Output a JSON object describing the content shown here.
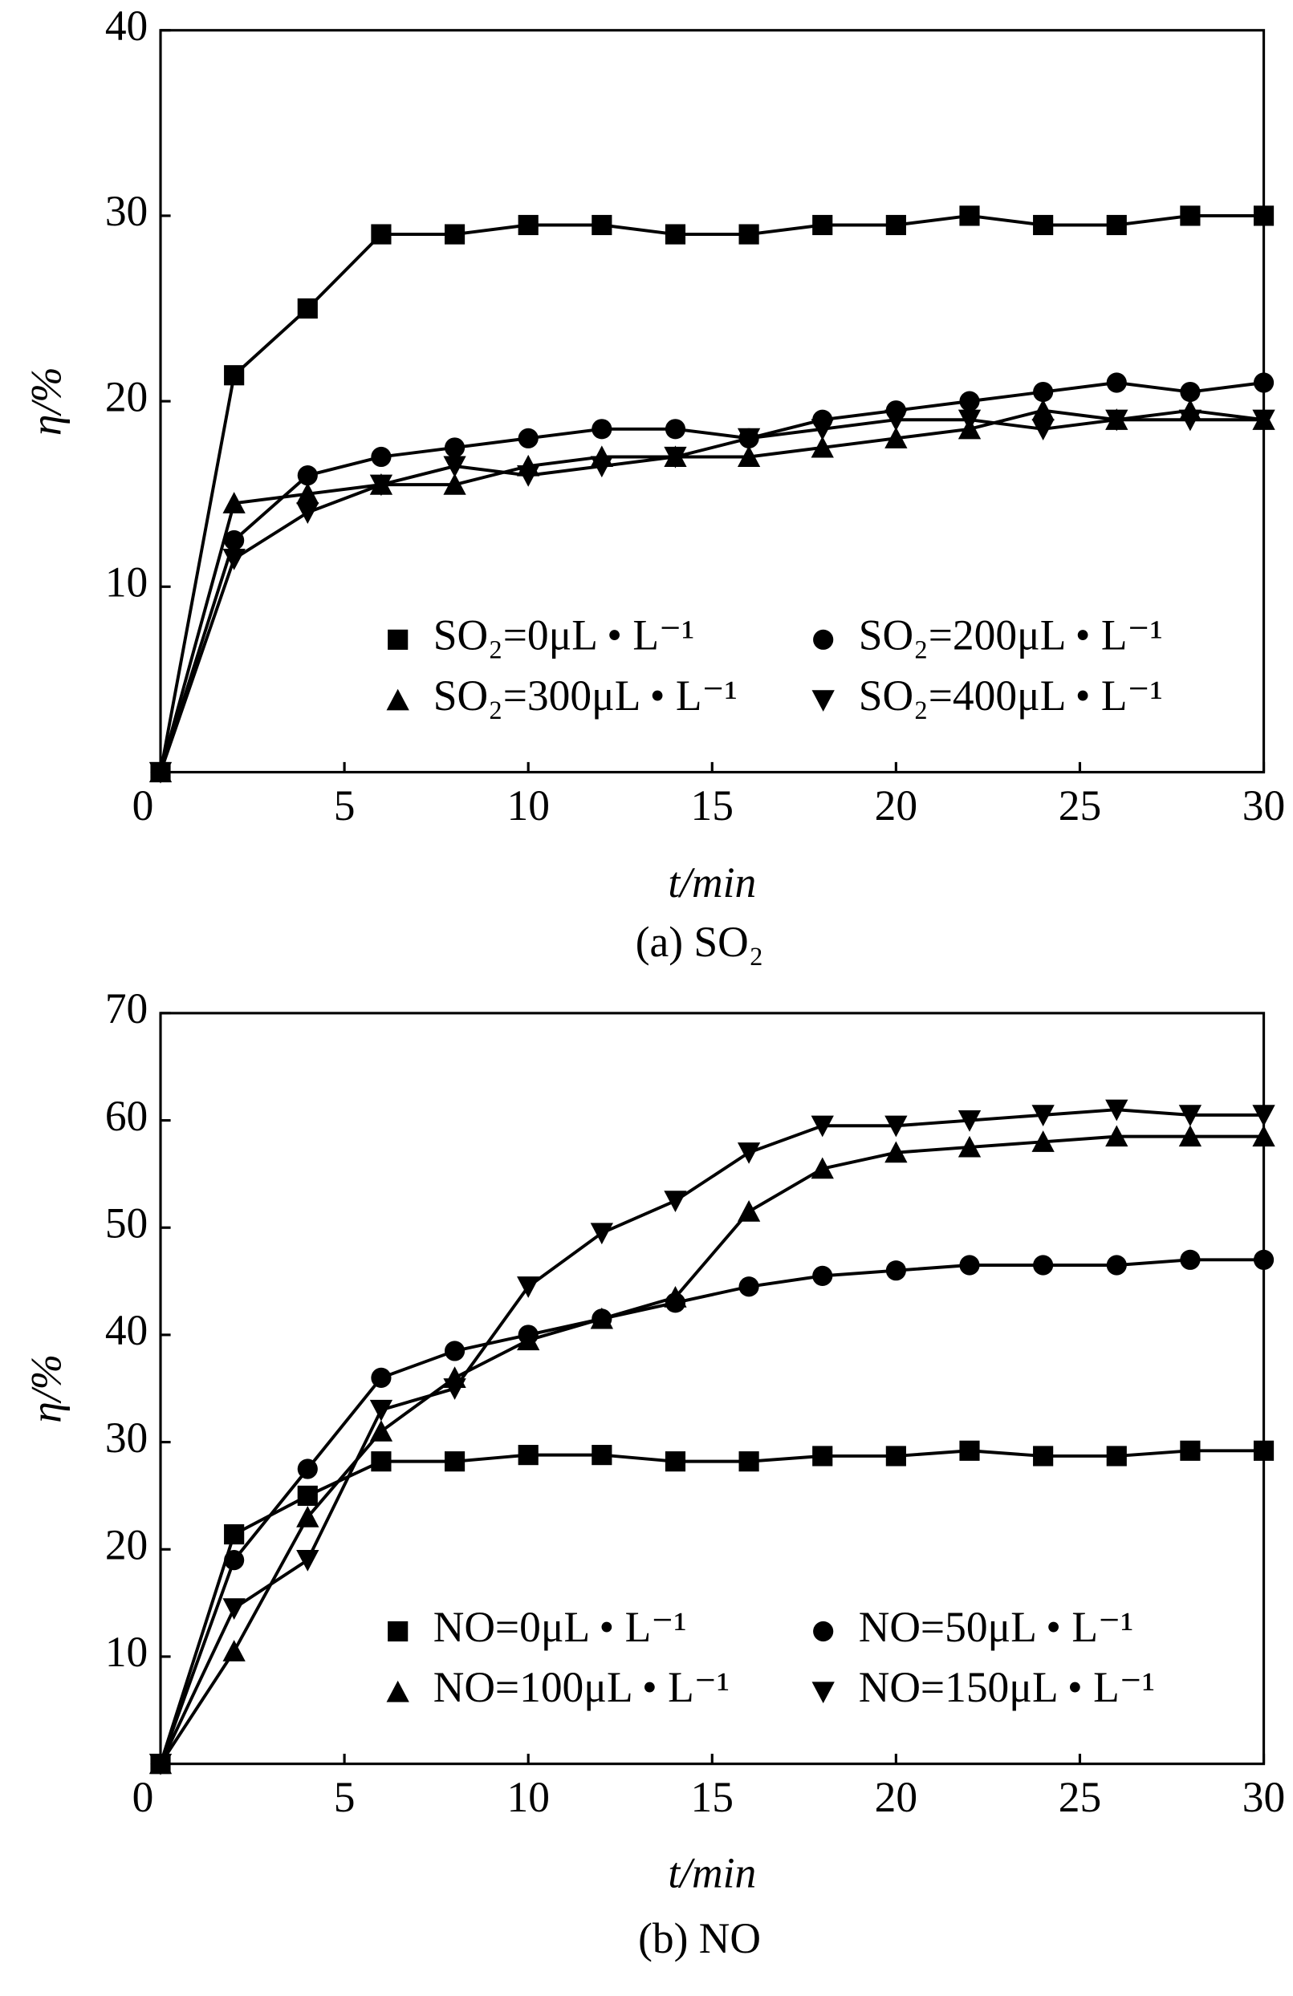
{
  "chart_data": [
    {
      "type": "line",
      "caption": "(a)  SO₂",
      "xlabel": "t/min",
      "ylabel": "η/%",
      "xlim": [
        0,
        30
      ],
      "xticks": [
        0,
        5,
        10,
        15,
        20,
        25,
        30
      ],
      "ylim": [
        0,
        40
      ],
      "yticks": [
        10,
        20,
        30,
        40
      ],
      "legend": "lower right",
      "x": [
        0,
        2,
        4,
        6,
        8,
        10,
        12,
        14,
        16,
        18,
        20,
        22,
        24,
        26,
        28,
        30
      ],
      "series": [
        {
          "name": "SO₂=0μL • L⁻¹",
          "color": "#000000",
          "marker": "square",
          "values": [
            0,
            21.4,
            25,
            29,
            29,
            29.5,
            29.5,
            29,
            29,
            29.5,
            29.5,
            30,
            29.5,
            29.5,
            30,
            30
          ]
        },
        {
          "name": "SO₂=200μL • L⁻¹",
          "color": "#000000",
          "marker": "circle",
          "values": [
            0,
            12.5,
            16,
            17,
            17.5,
            18,
            18.5,
            18.5,
            18,
            19,
            19.5,
            20,
            20.5,
            21,
            20.5,
            21
          ]
        },
        {
          "name": "SO₂=300μL • L⁻¹",
          "color": "#000000",
          "marker": "triangle",
          "values": [
            0,
            14.5,
            15,
            15.5,
            15.5,
            16.5,
            17,
            17,
            17,
            17.5,
            18,
            18.5,
            19.5,
            19,
            19.5,
            19
          ]
        },
        {
          "name": "SO₂=400μL • L⁻¹",
          "color": "#000000",
          "marker": "triangle-down",
          "values": [
            0,
            11.5,
            14,
            15.5,
            16.5,
            16,
            16.5,
            17,
            18,
            18.5,
            19,
            19,
            18.5,
            19,
            19,
            19
          ]
        }
      ]
    },
    {
      "type": "line",
      "caption": "(b) NO",
      "xlabel": "t/min",
      "ylabel": "η/%",
      "xlim": [
        0,
        30
      ],
      "xticks": [
        0,
        5,
        10,
        15,
        20,
        25,
        30
      ],
      "ylim": [
        0,
        70
      ],
      "yticks": [
        10,
        20,
        30,
        40,
        50,
        60,
        70
      ],
      "legend": "lower right",
      "x": [
        0,
        2,
        4,
        6,
        8,
        10,
        12,
        14,
        16,
        18,
        20,
        22,
        24,
        26,
        28,
        30
      ],
      "series": [
        {
          "name": "NO=0μL • L⁻¹",
          "color": "#000000",
          "marker": "square",
          "values": [
            0,
            21.4,
            25,
            28.2,
            28.2,
            28.8,
            28.8,
            28.2,
            28.2,
            28.7,
            28.7,
            29.2,
            28.7,
            28.7,
            29.2,
            29.2
          ]
        },
        {
          "name": "NO=50μL • L⁻¹",
          "color": "#000000",
          "marker": "circle",
          "values": [
            0,
            19,
            27.5,
            36,
            38.5,
            40,
            41.5,
            43,
            44.5,
            45.5,
            46,
            46.5,
            46.5,
            46.5,
            47,
            47
          ]
        },
        {
          "name": "NO=100μL • L⁻¹",
          "color": "#000000",
          "marker": "triangle",
          "values": [
            0,
            10.5,
            23,
            31,
            36,
            39.5,
            41.5,
            43.5,
            51.5,
            55.5,
            57,
            57.5,
            58,
            58.5,
            58.5,
            58.5
          ]
        },
        {
          "name": "NO=150μL • L⁻¹",
          "color": "#000000",
          "marker": "triangle-down",
          "values": [
            0,
            14.5,
            19,
            33,
            35,
            44.5,
            49.5,
            52.5,
            57,
            59.5,
            59.5,
            60,
            60.5,
            61,
            60.5,
            60.5
          ]
        }
      ]
    }
  ]
}
